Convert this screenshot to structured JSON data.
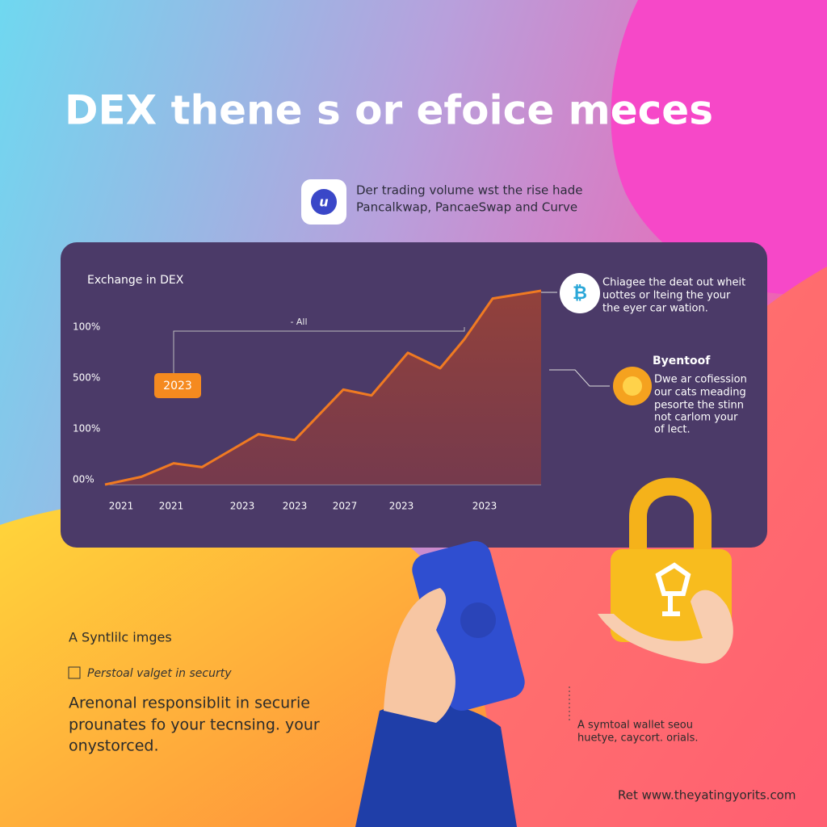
{
  "header": {
    "title": "DEX thene s or efoice meces"
  },
  "badge": {
    "icon": "u",
    "lines": [
      "Der trading volume wst the rise hade",
      "Pancalkwap, PancaeSwap and Curve"
    ]
  },
  "chart_data": {
    "type": "area",
    "title": "Exchange in DEX",
    "annotation": "- All",
    "callout": "2023",
    "y_labels": [
      "100%",
      "500%",
      "100%",
      "00%"
    ],
    "x_labels": [
      "2021",
      "2021",
      "2023",
      "2023",
      "2027",
      "2023",
      "2023"
    ],
    "x": [
      0,
      45,
      85,
      120,
      190,
      235,
      295,
      330,
      375,
      415,
      445,
      480,
      540
    ],
    "values": [
      0,
      4,
      11,
      9,
      26,
      23,
      49,
      46,
      68,
      60,
      75,
      96,
      100
    ],
    "xlim": [
      0,
      540
    ],
    "ylim": [
      0,
      100
    ],
    "color": "#f07a22"
  },
  "side_notes": [
    {
      "lines": [
        "Chiagee the deat out wheit",
        "uottes or lteing the your",
        "the eyer car wation."
      ]
    },
    {
      "heading": "Byentoof",
      "lines": [
        "Dwe ar cofiession",
        "our cats meading",
        "pesorte the stinn",
        "not carlom your",
        "of lect."
      ]
    }
  ],
  "bottom_left": {
    "caption": "A Syntlilc imges",
    "subcaption": "Perstoal valget in securty",
    "paragraph": [
      "Arenonal responsiblit in securie",
      "prounates fo your tecnsing. your",
      "onystorced."
    ]
  },
  "bottom_right": {
    "lines": [
      "A symtoal wallet seou",
      "huetye, caycort. orials."
    ]
  },
  "footer": "Ret www.theyatingyorits.com"
}
